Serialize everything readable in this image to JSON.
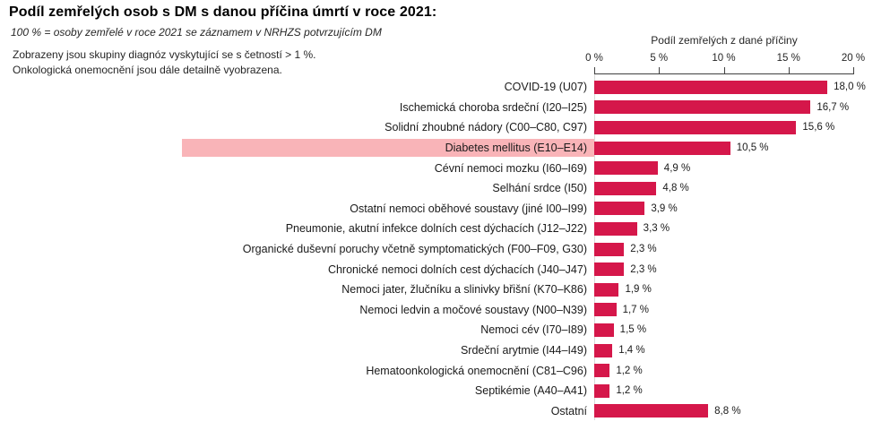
{
  "chart_data": {
    "type": "bar",
    "orientation": "horizontal",
    "title": "Podíl zemřelých osob s DM s danou příčina úmrtí v roce 2021:",
    "subtitle": "100 % = osoby zemřelé v roce 2021 se záznamem v NRHZS potvrzujícím DM",
    "notes": [
      "Zobrazeny jsou skupiny diagnóz vyskytující se s četností > 1 %.",
      "Onkologická onemocnění jsou dále detailně vyobrazena."
    ],
    "axis_label": "Podíl zemřelých z dané příčiny",
    "xlim": [
      0,
      20
    ],
    "tick_values": [
      0,
      5,
      10,
      15,
      20
    ],
    "tick_labels": [
      "0 %",
      "5 %",
      "10 %",
      "15 %",
      "20 %"
    ],
    "categories": [
      "COVID-19 (U07)",
      "Ischemická choroba srdeční (I20–I25)",
      "Solidní zhoubné nádory (C00–C80, C97)",
      "Diabetes mellitus (E10–E14)",
      "Cévní nemoci mozku (I60–I69)",
      "Selhání srdce (I50)",
      "Ostatní nemoci oběhové soustavy (jiné I00–I99)",
      "Pneumonie, akutní infekce dolních cest dýchacích (J12–J22)",
      "Organické duševní poruchy včetně symptomatických (F00–F09, G30)",
      "Chronické nemoci dolních cest dýchacích (J40–J47)",
      "Nemoci jater, žlučníku a slinivky břišní (K70–K86)",
      "Nemoci ledvin a močové soustavy (N00–N39)",
      "Nemoci cév (I70–I89)",
      "Srdeční arytmie (I44–I49)",
      "Hematoonkologická onemocnění (C81–C96)",
      "Septikémie (A40–A41)",
      "Ostatní"
    ],
    "values": [
      18.0,
      16.7,
      15.6,
      10.5,
      4.9,
      4.8,
      3.9,
      3.3,
      2.3,
      2.3,
      1.9,
      1.7,
      1.5,
      1.4,
      1.2,
      1.2,
      8.8
    ],
    "value_labels": [
      "18,0 %",
      "16,7 %",
      "15,6 %",
      "10,5 %",
      "4,9 %",
      "4,8 %",
      "3,9 %",
      "3,3 %",
      "2,3 %",
      "2,3 %",
      "1,9 %",
      "1,7 %",
      "1,5 %",
      "1,4 %",
      "1,2 %",
      "1,2 %",
      "8,8 %"
    ],
    "highlighted_category": "Diabetes mellitus (E10–E14)",
    "bar_color": "#D5174A",
    "highlight_color": "#F9B4B8",
    "grid": false,
    "legend": false
  }
}
